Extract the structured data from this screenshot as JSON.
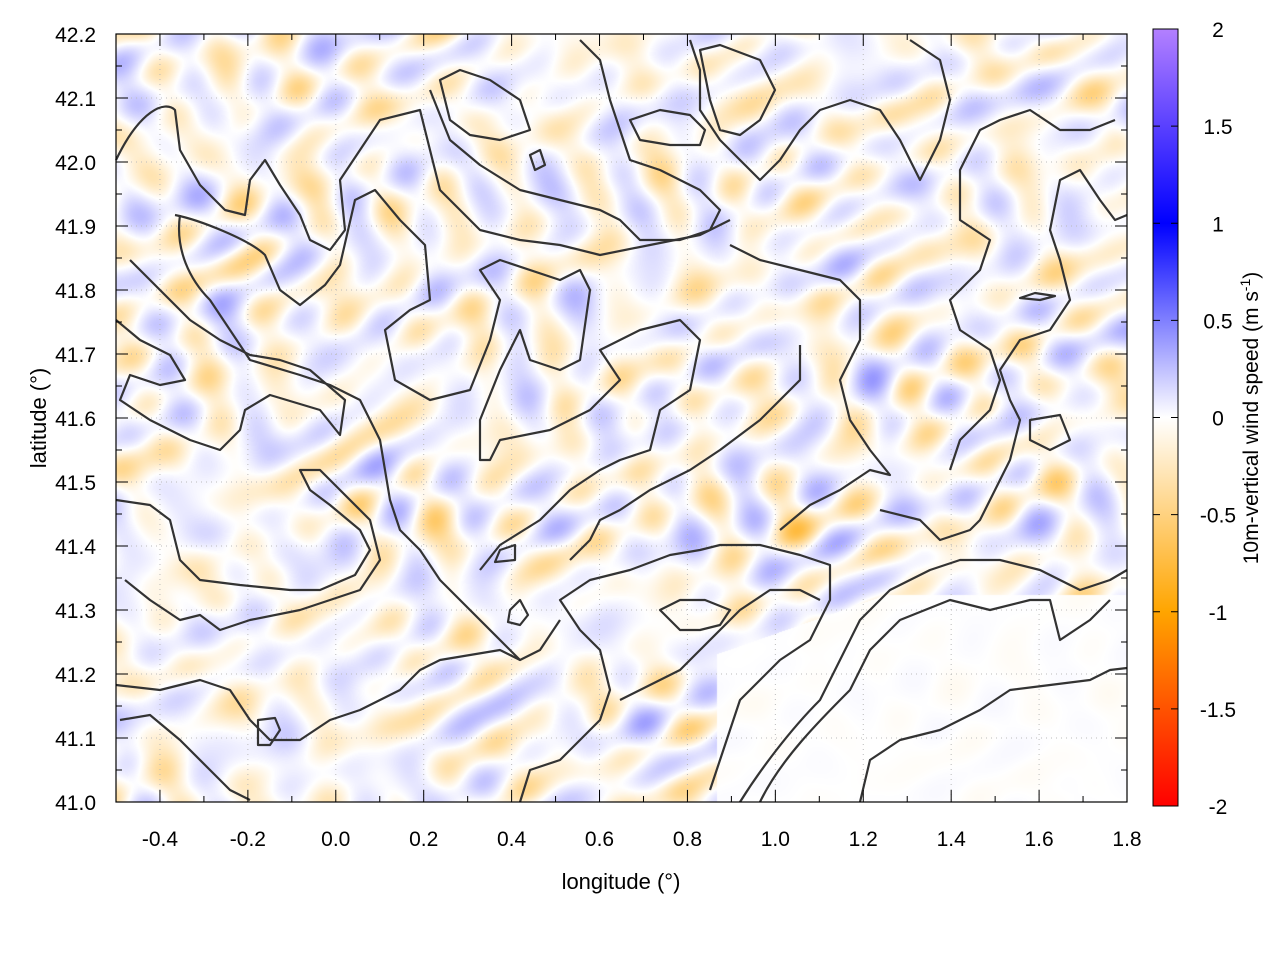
{
  "chart_data": {
    "type": "heatmap",
    "overlay": "contour",
    "title": "",
    "xlabel": "longitude (°)",
    "ylabel": "latitude (°)",
    "xlim": [
      -0.5,
      1.8
    ],
    "ylim": [
      41.0,
      42.2
    ],
    "xticks": [
      "-0.4",
      "-0.2",
      "0.0",
      "0.2",
      "0.4",
      "0.6",
      "0.8",
      "1.0",
      "1.2",
      "1.4",
      "1.6",
      "1.8"
    ],
    "yticks": [
      "41.0",
      "41.1",
      "41.2",
      "41.3",
      "41.4",
      "41.5",
      "41.6",
      "41.7",
      "41.8",
      "41.9",
      "42.0",
      "42.1",
      "42.2"
    ],
    "grid": true,
    "colorbar": {
      "label": "10m-vertical wind speed (m s",
      "label_sup": "-1",
      "label_end": ")",
      "range": [
        -2,
        2
      ],
      "ticks": [
        "2",
        "1.5",
        "1",
        "0.5",
        "0",
        "-0.5",
        "-1",
        "-1.5",
        "-2"
      ],
      "colors": {
        "-2": "#ff0000",
        "-1": "#ffa500",
        "0": "#ffffff",
        "1": "#0000ff",
        "2": "#b380ff"
      }
    },
    "contour_color": "#333333"
  }
}
